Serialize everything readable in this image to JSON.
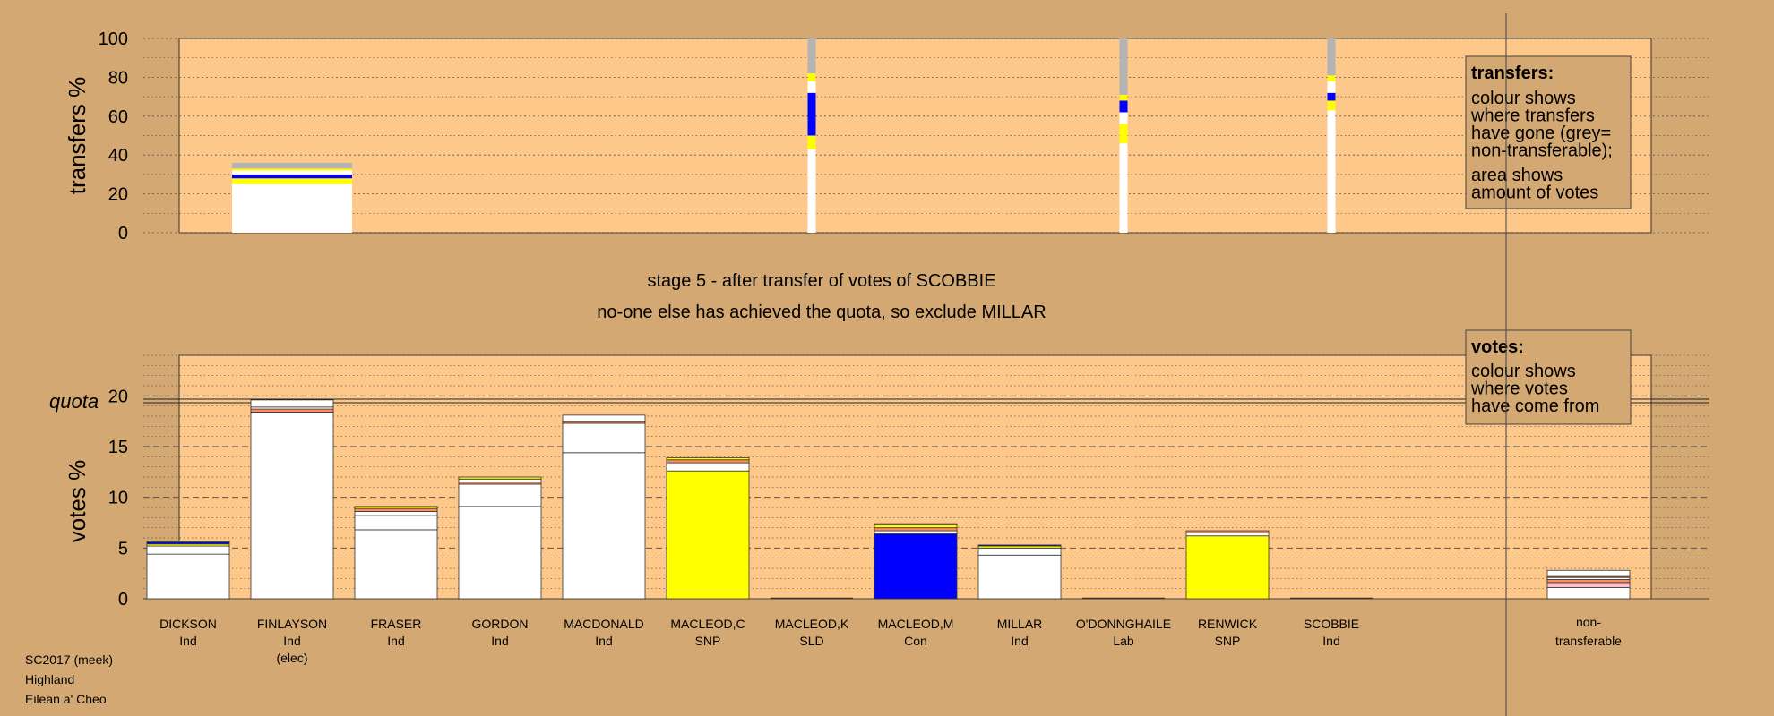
{
  "chart_data": {
    "type": "bar",
    "stage_title": "stage 5 - after transfer of votes of SCOBBIE",
    "stage_subtitle": "no-one else has achieved the quota, so exclude MILLAR",
    "footer": [
      "SC2017 (meek)",
      "Highland",
      "Eilean a' Cheo"
    ],
    "colors": {
      "background": "#d4a872",
      "plot": "#fdc889",
      "Ind": "#ffffff",
      "SNP": "#ffff00",
      "Con": "#0000ff",
      "nt": "#b4b4b4"
    },
    "categories": [
      {
        "name": "DICKSON",
        "party": "Ind",
        "note": ""
      },
      {
        "name": "FINLAYSON",
        "party": "Ind",
        "note": "(elec)"
      },
      {
        "name": "FRASER",
        "party": "Ind",
        "note": ""
      },
      {
        "name": "GORDON",
        "party": "Ind",
        "note": ""
      },
      {
        "name": "MACDONALD",
        "party": "Ind",
        "note": ""
      },
      {
        "name": "MACLEOD,C",
        "party": "SNP",
        "note": ""
      },
      {
        "name": "MACLEOD,K",
        "party": "SLD",
        "note": ""
      },
      {
        "name": "MACLEOD,M",
        "party": "Con",
        "note": ""
      },
      {
        "name": "MILLAR",
        "party": "Ind",
        "note": ""
      },
      {
        "name": "O'DONNGHAILE",
        "party": "Lab",
        "note": ""
      },
      {
        "name": "RENWICK",
        "party": "SNP",
        "note": ""
      },
      {
        "name": "SCOBBIE",
        "party": "Ind",
        "note": ""
      }
    ],
    "nontransferable_label": [
      "non-",
      "transferable"
    ],
    "transfers": {
      "ylabel": "transfers %",
      "ylim": [
        0,
        100
      ],
      "yticks": [
        0,
        20,
        40,
        60,
        80,
        100
      ],
      "legend_title": "transfers:",
      "legend_lines": [
        [
          "colour shows",
          "where transfers",
          "have gone (grey=",
          "non-transferable);"
        ],
        [
          "area shows",
          "amount of votes"
        ]
      ],
      "columns": [
        {
          "category": "FINLAYSON",
          "wide": true,
          "segments": [
            {
              "from": 0,
              "to": 25,
              "color": "#ffffff"
            },
            {
              "from": 25,
              "to": 28,
              "color": "#ffff00"
            },
            {
              "from": 28,
              "to": 30,
              "color": "#0000ff"
            },
            {
              "from": 30,
              "to": 32,
              "color": "#ffffff"
            },
            {
              "from": 32,
              "to": 33,
              "color": "#ffff00"
            },
            {
              "from": 33,
              "to": 36,
              "color": "#b4b4b4"
            }
          ]
        },
        {
          "category": "MACLEOD,K",
          "wide": false,
          "segments": [
            {
              "from": 0,
              "to": 43,
              "color": "#ffffff"
            },
            {
              "from": 43,
              "to": 50,
              "color": "#ffff00"
            },
            {
              "from": 50,
              "to": 72,
              "color": "#0000ff"
            },
            {
              "from": 72,
              "to": 78,
              "color": "#ffffff"
            },
            {
              "from": 78,
              "to": 82,
              "color": "#ffff00"
            },
            {
              "from": 82,
              "to": 100,
              "color": "#b4b4b4"
            }
          ]
        },
        {
          "category": "O'DONNGHAILE",
          "wide": false,
          "segments": [
            {
              "from": 0,
              "to": 46,
              "color": "#ffffff"
            },
            {
              "from": 46,
              "to": 56,
              "color": "#ffff00"
            },
            {
              "from": 56,
              "to": 62,
              "color": "#ffffff"
            },
            {
              "from": 62,
              "to": 68,
              "color": "#0000ff"
            },
            {
              "from": 68,
              "to": 71,
              "color": "#ffff00"
            },
            {
              "from": 71,
              "to": 100,
              "color": "#b4b4b4"
            }
          ]
        },
        {
          "category": "SCOBBIE",
          "wide": false,
          "segments": [
            {
              "from": 0,
              "to": 63,
              "color": "#ffffff"
            },
            {
              "from": 63,
              "to": 68,
              "color": "#ffff00"
            },
            {
              "from": 68,
              "to": 72,
              "color": "#0000ff"
            },
            {
              "from": 72,
              "to": 78,
              "color": "#ffffff"
            },
            {
              "from": 78,
              "to": 81,
              "color": "#ffff00"
            },
            {
              "from": 81,
              "to": 100,
              "color": "#b4b4b4"
            }
          ]
        }
      ]
    },
    "votes": {
      "ylabel": "votes %",
      "ylim": [
        0,
        24
      ],
      "yticks": [
        0,
        5,
        10,
        15,
        20
      ],
      "quota": 19.5,
      "quota_label": "quota",
      "legend_title": "votes:",
      "legend_lines": [
        [
          "colour shows",
          "where votes",
          "have come from"
        ]
      ],
      "bars": [
        {
          "category": "DICKSON",
          "segments": [
            {
              "h": 4.4,
              "color": "#ffffff"
            },
            {
              "h": 0.8,
              "color": "#ffffff"
            },
            {
              "h": 0.2,
              "color": "#ffff00"
            },
            {
              "h": 0.2,
              "color": "#0000ff"
            },
            {
              "h": 0.1,
              "color": "#ffff00"
            }
          ]
        },
        {
          "category": "FINLAYSON",
          "segments": [
            {
              "h": 18.4,
              "color": "#ffffff"
            },
            {
              "h": 0.3,
              "color": "#ff8c5a"
            },
            {
              "h": 0.2,
              "color": "#ffffff"
            },
            {
              "h": 0.7,
              "color": "#ffffff"
            }
          ]
        },
        {
          "category": "FRASER",
          "segments": [
            {
              "h": 6.8,
              "color": "#ffffff"
            },
            {
              "h": 1.4,
              "color": "#ffffff"
            },
            {
              "h": 0.4,
              "color": "#ffffff"
            },
            {
              "h": 0.3,
              "color": "#ff8c5a"
            },
            {
              "h": 0.2,
              "color": "#ffff00"
            }
          ]
        },
        {
          "category": "GORDON",
          "segments": [
            {
              "h": 9.1,
              "color": "#ffffff"
            },
            {
              "h": 2.2,
              "color": "#ffffff"
            },
            {
              "h": 0.2,
              "color": "#ff8c5a"
            },
            {
              "h": 0.3,
              "color": "#ffffff"
            },
            {
              "h": 0.2,
              "color": "#ffff00"
            }
          ]
        },
        {
          "category": "MACDONALD",
          "segments": [
            {
              "h": 14.4,
              "color": "#ffffff"
            },
            {
              "h": 2.9,
              "color": "#ffffff"
            },
            {
              "h": 0.2,
              "color": "#ff8c5a"
            },
            {
              "h": 0.6,
              "color": "#ffffff"
            }
          ]
        },
        {
          "category": "MACLEOD,C",
          "segments": [
            {
              "h": 12.6,
              "color": "#ffff00"
            },
            {
              "h": 0.8,
              "color": "#ffffff"
            },
            {
              "h": 0.3,
              "color": "#ff8c5a"
            },
            {
              "h": 0.2,
              "color": "#ffff00"
            }
          ]
        },
        {
          "category": "MACLEOD,K",
          "segments": []
        },
        {
          "category": "MACLEOD,M",
          "segments": [
            {
              "h": 6.4,
              "color": "#0000ff"
            },
            {
              "h": 0.3,
              "color": "#ffffff"
            },
            {
              "h": 0.3,
              "color": "#ff8c5a"
            },
            {
              "h": 0.3,
              "color": "#ffff00"
            },
            {
              "h": 0.1,
              "color": "#ff8c5a"
            }
          ]
        },
        {
          "category": "MILLAR",
          "segments": [
            {
              "h": 4.3,
              "color": "#ffffff"
            },
            {
              "h": 0.7,
              "color": "#ffffff"
            },
            {
              "h": 0.2,
              "color": "#ffff00"
            },
            {
              "h": 0.1,
              "color": "#0000ff"
            }
          ]
        },
        {
          "category": "O'DONNGHAILE",
          "segments": []
        },
        {
          "category": "RENWICK",
          "segments": [
            {
              "h": 6.2,
              "color": "#ffff00"
            },
            {
              "h": 0.3,
              "color": "#ffffff"
            },
            {
              "h": 0.2,
              "color": "#ff8c5a"
            }
          ]
        },
        {
          "category": "SCOBBIE",
          "segments": []
        },
        {
          "category": "non-transferable",
          "segments": [
            {
              "h": 1.1,
              "color": "#ffffff"
            },
            {
              "h": 0.5,
              "color": "#ffc0cb"
            },
            {
              "h": 0.3,
              "color": "#ff8c5a"
            },
            {
              "h": 0.2,
              "color": "#ffffff"
            },
            {
              "h": 0.1,
              "color": "#ff8c5a"
            },
            {
              "h": 0.6,
              "color": "#ffffff"
            }
          ]
        }
      ]
    }
  }
}
